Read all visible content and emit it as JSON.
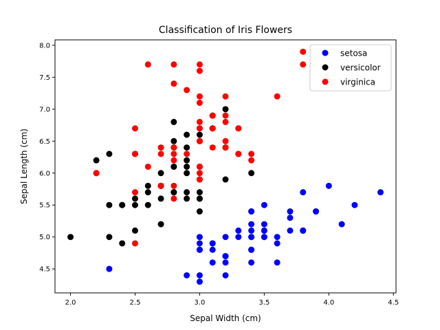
{
  "chart_data": {
    "type": "scatter",
    "title": "Classification of Iris Flowers",
    "xlabel": "Sepal Width (cm)",
    "ylabel": "Sepal Length (cm)",
    "xlim": [
      1.88,
      4.52
    ],
    "ylim": [
      4.125,
      8.085
    ],
    "xticks": [
      "2.0",
      "2.5",
      "3.0",
      "3.5",
      "4.0",
      "4.5"
    ],
    "yticks": [
      "4.5",
      "5.0",
      "5.5",
      "6.0",
      "6.5",
      "7.0",
      "7.5",
      "8.0"
    ],
    "grid": false,
    "legend_position": "top-right",
    "series": [
      {
        "name": "setosa",
        "color": "#0000ff",
        "points": [
          [
            3.5,
            5.1
          ],
          [
            3.0,
            4.9
          ],
          [
            3.2,
            4.7
          ],
          [
            3.1,
            4.6
          ],
          [
            3.6,
            5.0
          ],
          [
            3.9,
            5.4
          ],
          [
            3.4,
            4.6
          ],
          [
            3.4,
            5.0
          ],
          [
            2.9,
            4.4
          ],
          [
            3.1,
            4.9
          ],
          [
            3.7,
            5.4
          ],
          [
            3.4,
            4.8
          ],
          [
            3.0,
            4.8
          ],
          [
            3.0,
            4.3
          ],
          [
            4.0,
            5.8
          ],
          [
            4.4,
            5.7
          ],
          [
            3.9,
            5.4
          ],
          [
            3.5,
            5.1
          ],
          [
            3.8,
            5.7
          ],
          [
            3.8,
            5.1
          ],
          [
            3.4,
            5.4
          ],
          [
            3.7,
            5.1
          ],
          [
            3.6,
            4.6
          ],
          [
            3.3,
            5.1
          ],
          [
            3.4,
            4.8
          ],
          [
            3.0,
            5.0
          ],
          [
            3.4,
            5.0
          ],
          [
            3.5,
            5.2
          ],
          [
            3.4,
            5.2
          ],
          [
            3.2,
            4.7
          ],
          [
            3.1,
            4.8
          ],
          [
            3.4,
            5.4
          ],
          [
            4.1,
            5.2
          ],
          [
            4.2,
            5.5
          ],
          [
            3.1,
            4.9
          ],
          [
            3.2,
            5.0
          ],
          [
            3.5,
            5.5
          ],
          [
            3.6,
            4.9
          ],
          [
            3.0,
            4.4
          ],
          [
            3.4,
            5.1
          ],
          [
            3.5,
            5.0
          ],
          [
            2.3,
            4.5
          ],
          [
            3.2,
            4.4
          ],
          [
            3.5,
            5.0
          ],
          [
            3.8,
            5.1
          ],
          [
            3.0,
            4.8
          ],
          [
            3.8,
            5.1
          ],
          [
            3.2,
            4.6
          ],
          [
            3.7,
            5.3
          ],
          [
            3.3,
            5.0
          ]
        ]
      },
      {
        "name": "versicolor",
        "color": "#000000",
        "points": [
          [
            3.2,
            7.0
          ],
          [
            3.2,
            6.4
          ],
          [
            3.1,
            6.9
          ],
          [
            2.3,
            5.5
          ],
          [
            2.8,
            6.5
          ],
          [
            2.8,
            5.7
          ],
          [
            3.3,
            6.3
          ],
          [
            2.4,
            4.9
          ],
          [
            2.9,
            6.6
          ],
          [
            2.7,
            5.2
          ],
          [
            2.0,
            5.0
          ],
          [
            3.0,
            5.9
          ],
          [
            2.2,
            6.0
          ],
          [
            2.9,
            6.1
          ],
          [
            2.9,
            5.6
          ],
          [
            3.1,
            6.7
          ],
          [
            3.0,
            5.6
          ],
          [
            2.7,
            5.8
          ],
          [
            2.2,
            6.2
          ],
          [
            2.5,
            5.6
          ],
          [
            3.2,
            5.9
          ],
          [
            2.8,
            6.1
          ],
          [
            2.5,
            6.3
          ],
          [
            2.8,
            6.1
          ],
          [
            2.9,
            6.4
          ],
          [
            3.0,
            6.6
          ],
          [
            2.8,
            6.8
          ],
          [
            3.0,
            6.7
          ],
          [
            2.9,
            6.0
          ],
          [
            2.6,
            5.7
          ],
          [
            2.4,
            5.5
          ],
          [
            2.4,
            5.5
          ],
          [
            2.7,
            5.8
          ],
          [
            2.7,
            6.0
          ],
          [
            3.0,
            5.4
          ],
          [
            3.4,
            6.0
          ],
          [
            3.1,
            6.7
          ],
          [
            2.3,
            6.3
          ],
          [
            3.0,
            5.6
          ],
          [
            2.5,
            5.5
          ],
          [
            2.6,
            5.5
          ],
          [
            3.0,
            6.1
          ],
          [
            2.6,
            5.8
          ],
          [
            2.3,
            5.0
          ],
          [
            2.7,
            5.6
          ],
          [
            3.0,
            5.7
          ],
          [
            2.9,
            5.7
          ],
          [
            2.9,
            6.2
          ],
          [
            2.5,
            5.1
          ],
          [
            2.8,
            5.7
          ]
        ]
      },
      {
        "name": "virginica",
        "color": "#ff0000",
        "points": [
          [
            3.3,
            6.3
          ],
          [
            2.7,
            5.8
          ],
          [
            3.0,
            7.1
          ],
          [
            2.9,
            6.3
          ],
          [
            3.0,
            6.5
          ],
          [
            3.0,
            7.6
          ],
          [
            2.5,
            4.9
          ],
          [
            2.9,
            7.3
          ],
          [
            2.5,
            6.7
          ],
          [
            3.6,
            7.2
          ],
          [
            3.2,
            6.5
          ],
          [
            2.7,
            6.4
          ],
          [
            3.0,
            6.8
          ],
          [
            2.5,
            5.7
          ],
          [
            2.8,
            5.8
          ],
          [
            3.2,
            6.4
          ],
          [
            3.0,
            6.5
          ],
          [
            3.8,
            7.7
          ],
          [
            2.6,
            7.7
          ],
          [
            2.2,
            6.0
          ],
          [
            3.2,
            6.9
          ],
          [
            2.8,
            5.6
          ],
          [
            2.8,
            7.7
          ],
          [
            2.7,
            6.3
          ],
          [
            3.3,
            6.7
          ],
          [
            3.2,
            7.2
          ],
          [
            2.8,
            6.2
          ],
          [
            3.0,
            6.1
          ],
          [
            2.8,
            6.4
          ],
          [
            3.0,
            7.2
          ],
          [
            2.8,
            7.4
          ],
          [
            3.8,
            7.9
          ],
          [
            2.8,
            6.4
          ],
          [
            2.8,
            6.3
          ],
          [
            2.6,
            6.1
          ],
          [
            3.0,
            7.7
          ],
          [
            3.4,
            6.3
          ],
          [
            3.1,
            6.4
          ],
          [
            3.0,
            6.0
          ],
          [
            3.1,
            6.9
          ],
          [
            3.1,
            6.7
          ],
          [
            3.1,
            6.9
          ],
          [
            2.7,
            5.8
          ],
          [
            3.2,
            6.8
          ],
          [
            3.3,
            6.7
          ],
          [
            3.0,
            6.7
          ],
          [
            2.5,
            6.3
          ],
          [
            3.0,
            6.5
          ],
          [
            3.4,
            6.2
          ],
          [
            3.0,
            5.9
          ]
        ]
      }
    ]
  }
}
